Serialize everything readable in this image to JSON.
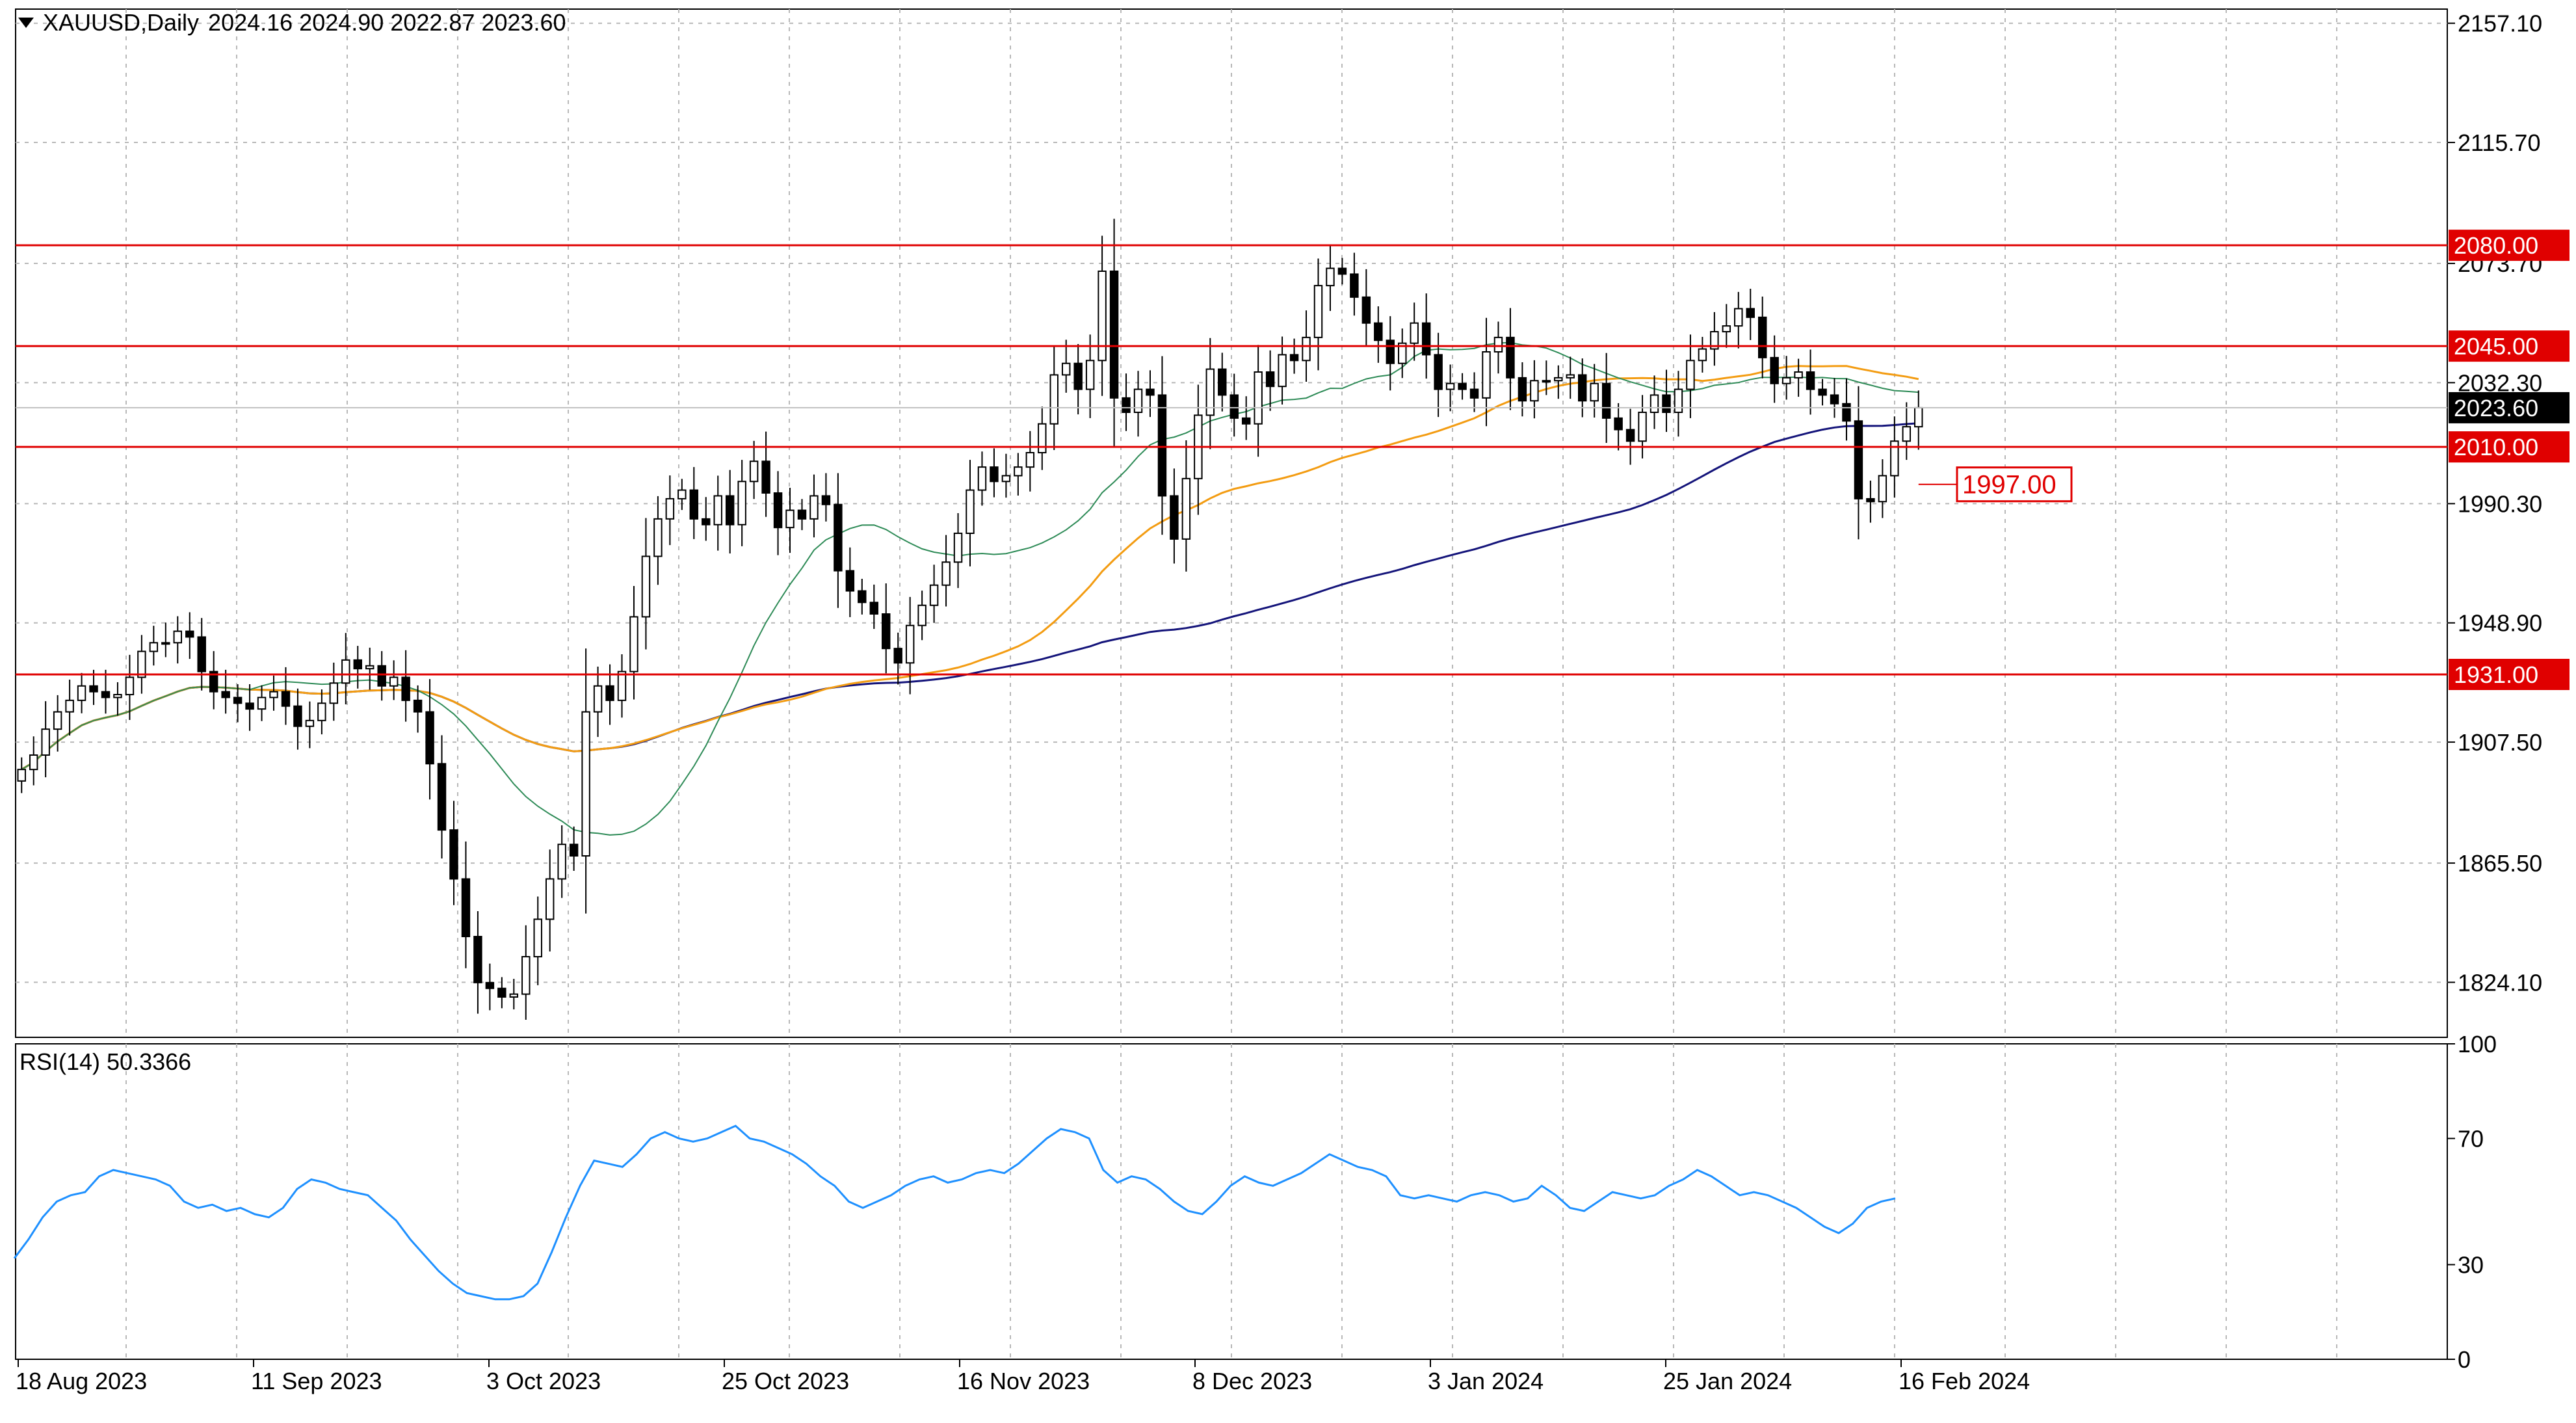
{
  "header": {
    "symbol": "XAUUSD,Daily",
    "ohlc": "2024.16 2024.90 2022.87 2023.60"
  },
  "rsi": {
    "label": "RSI(14) 50.3366",
    "ticks": [
      "100",
      "70",
      "30",
      "0"
    ]
  },
  "chart_data": [
    {
      "type": "candlestick",
      "title": "",
      "y_ticks": [
        "2157.10",
        "2115.70",
        "2073.70",
        "2032.30",
        "1990.30",
        "1948.90",
        "1907.50",
        "1865.50",
        "1824.10"
      ],
      "ylim": [
        1805,
        2162
      ],
      "x_labels": [
        "18 Aug 2023",
        "11 Sep 2023",
        "3 Oct 2023",
        "25 Oct 2023",
        "16 Nov 2023",
        "8 Dec 2023",
        "3 Jan 2024",
        "25 Jan 2024",
        "16 Feb 2024"
      ],
      "levels": [
        {
          "value": 2080.0,
          "label": "2080.00",
          "color": "#e00000"
        },
        {
          "value": 2045.0,
          "label": "2045.00",
          "color": "#e00000"
        },
        {
          "value": 2010.0,
          "label": "2010.00",
          "color": "#e00000"
        },
        {
          "value": 1931.0,
          "label": "1931.00",
          "color": "#e00000"
        }
      ],
      "current_price": {
        "value": 2023.6,
        "label": "2023.60"
      },
      "annotation": {
        "value": 1997.0,
        "label": "1997.00"
      },
      "close_series": [
        1898,
        1903,
        1912,
        1918,
        1922,
        1927,
        1925,
        1923,
        1924,
        1930,
        1939,
        1942,
        1942,
        1946,
        1944,
        1932,
        1925,
        1923,
        1921,
        1919,
        1923,
        1925,
        1920,
        1913,
        1915,
        1921,
        1928,
        1936,
        1933,
        1934,
        1927,
        1930,
        1922,
        1918,
        1900,
        1877,
        1860,
        1840,
        1824,
        1822,
        1819,
        1820,
        1833,
        1846,
        1860,
        1872,
        1868,
        1918,
        1927,
        1922,
        1932,
        1951,
        1972,
        1985,
        1992,
        1995,
        1985,
        1983,
        1993,
        1983,
        1998,
        2005,
        1994,
        1982,
        1988,
        1985,
        1993,
        1990,
        1967,
        1960,
        1956,
        1952,
        1940,
        1935,
        1948,
        1955,
        1962,
        1970,
        1980,
        1995,
        2003,
        1998,
        2000,
        2003,
        2008,
        2018,
        2035,
        2039,
        2030,
        2040,
        2071,
        2027,
        2022,
        2030,
        2028,
        1993,
        1978,
        1999,
        2021,
        2037,
        2028,
        2020,
        2018,
        2036,
        2031,
        2042,
        2040,
        2048,
        2066,
        2072,
        2070,
        2062,
        2053,
        2047,
        2039,
        2046,
        2053,
        2042,
        2030,
        2032,
        2030,
        2027,
        2043,
        2048,
        2034,
        2026,
        2033,
        2033,
        2034,
        2035,
        2026,
        2032,
        2020,
        2016,
        2012,
        2022,
        2028,
        2022,
        2030,
        2040,
        2044,
        2050,
        2052,
        2058,
        2055,
        2041,
        2032,
        2034,
        2036,
        2030,
        2028,
        2025,
        2019,
        1992,
        1991,
        2000,
        2012,
        2017,
        2023.6
      ],
      "sma_short": "green",
      "sma_mid": "orange",
      "sma_long": "navy"
    },
    {
      "type": "line",
      "title": "",
      "ylim": [
        0,
        100
      ],
      "rsi_series": [
        32,
        38,
        45,
        50,
        52,
        53,
        58,
        60,
        59,
        58,
        57,
        55,
        50,
        48,
        49,
        47,
        48,
        46,
        45,
        48,
        54,
        57,
        56,
        54,
        53,
        52,
        48,
        44,
        38,
        33,
        28,
        24,
        21,
        20,
        19,
        19,
        20,
        24,
        34,
        45,
        55,
        63,
        62,
        61,
        65,
        70,
        72,
        70,
        69,
        70,
        72,
        74,
        70,
        69,
        67,
        65,
        62,
        58,
        55,
        50,
        48,
        50,
        52,
        55,
        57,
        58,
        56,
        57,
        59,
        60,
        59,
        62,
        66,
        70,
        73,
        72,
        70,
        60,
        56,
        58,
        57,
        54,
        50,
        47,
        46,
        50,
        55,
        58,
        56,
        55,
        57,
        59,
        62,
        65,
        63,
        61,
        60,
        58,
        52,
        51,
        52,
        51,
        50,
        52,
        53,
        52,
        50,
        51,
        55,
        52,
        48,
        47,
        50,
        53,
        52,
        51,
        52,
        55,
        57,
        60,
        58,
        55,
        52,
        53,
        52,
        50,
        48,
        45,
        42,
        40,
        43,
        48,
        50,
        51
      ],
      "rsi_color": "#1e90ff"
    }
  ]
}
